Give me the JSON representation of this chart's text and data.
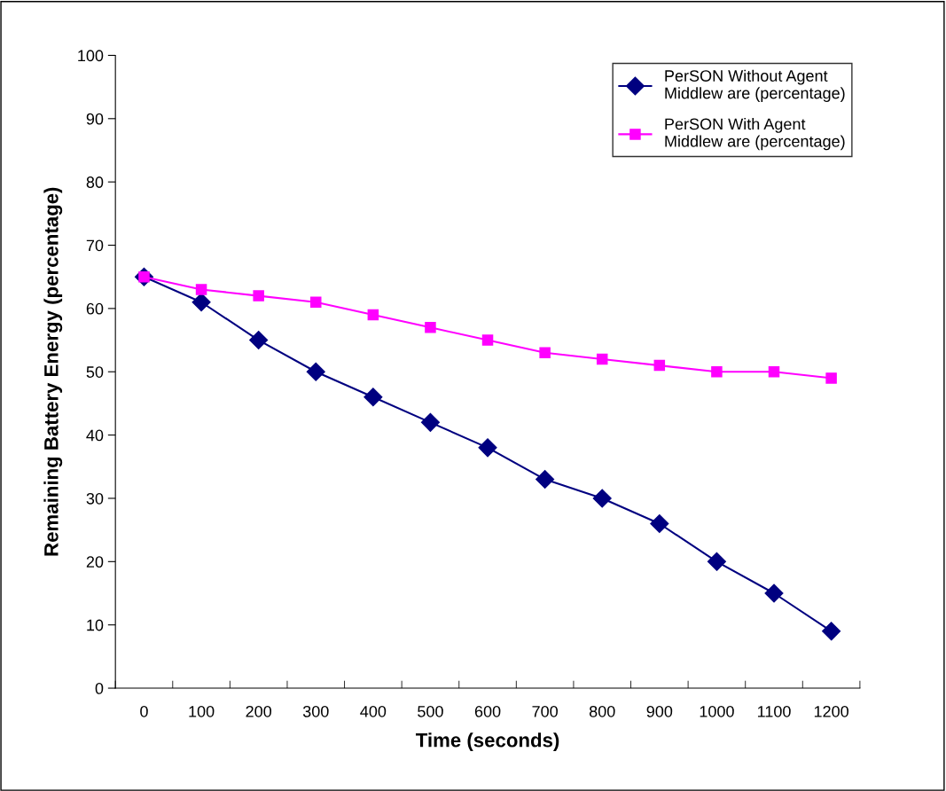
{
  "chart_data": {
    "type": "line",
    "xlabel": "Time (seconds)",
    "ylabel": "Remaining Battery Energy (percentage)",
    "categories": [
      "0",
      "100",
      "200",
      "300",
      "400",
      "500",
      "600",
      "700",
      "800",
      "900",
      "1000",
      "1100",
      "1200"
    ],
    "series": [
      {
        "name": "PerSON Without Agent\nMiddlew are (percentage)",
        "color": "#000080",
        "marker": "diamond",
        "values": [
          65,
          61,
          55,
          50,
          46,
          42,
          38,
          33,
          30,
          26,
          20,
          15,
          9
        ]
      },
      {
        "name": "PerSON With Agent\nMiddlew are (percentage)",
        "color": "#ff00ff",
        "marker": "square",
        "values": [
          65,
          63,
          62,
          61,
          59,
          57,
          55,
          53,
          52,
          51,
          50,
          50,
          49
        ]
      }
    ],
    "ylim": [
      0,
      100
    ],
    "yticks": [
      0,
      10,
      20,
      30,
      40,
      50,
      60,
      70,
      80,
      90,
      100
    ],
    "grid": false,
    "legend": "top right",
    "line_style": "solid"
  }
}
